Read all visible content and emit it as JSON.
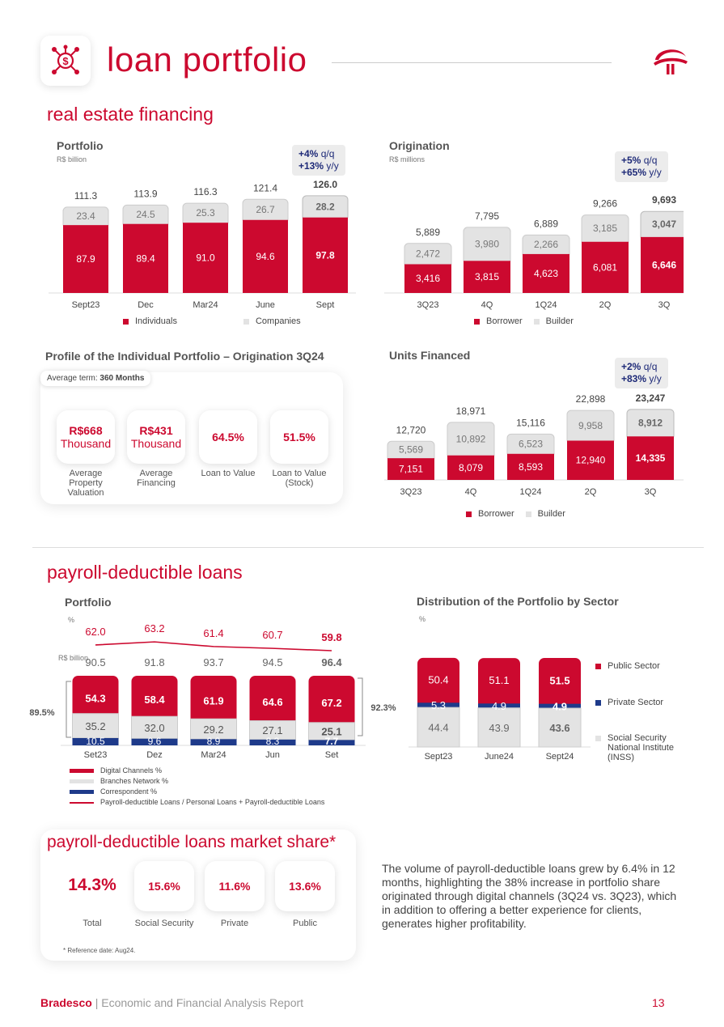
{
  "header": {
    "title": "loan portfolio"
  },
  "re": {
    "section_title": "real estate financing",
    "portfolio": {
      "title": "Portfolio",
      "unit": "R$ billion",
      "badge_line1_value": "+4%",
      "badge_line1_unit": " q/q",
      "badge_line2_value": "+13%",
      "badge_line2_unit": " y/y",
      "legend": [
        "Individuals",
        "Companies"
      ]
    },
    "origination": {
      "title": "Origination",
      "unit": "R$ millions",
      "badge_line1_value": "+5%",
      "badge_line1_unit": " q/q",
      "badge_line2_value": "+65%",
      "badge_line2_unit": " y/y",
      "legend": [
        "Borrower",
        "Builder"
      ]
    },
    "units": {
      "title": "Units Financed",
      "badge_line1_value": "+2%",
      "badge_line1_unit": " q/q",
      "badge_line2_value": "+83%",
      "badge_line2_unit": " y/y",
      "legend": [
        "Borrower",
        "Builder"
      ]
    },
    "profile": {
      "title": "Profile of the Individual Portfolio – Origination 3Q24",
      "avg_term_label": "Average term: ",
      "avg_term_value": "360 Months",
      "kpis": [
        {
          "line1": "R$668",
          "line2": "Thousand",
          "label": "Average Property Valuation"
        },
        {
          "line1": "R$431",
          "line2": "Thousand",
          "label": "Average Financing"
        },
        {
          "line1": "64.5%",
          "line2": "",
          "label": "Loan to Value"
        },
        {
          "line1": "51.5%",
          "line2": "",
          "label": "Loan to Value (Stock)"
        }
      ]
    }
  },
  "pd": {
    "section_title": "payroll-deductible loans",
    "portfolio": {
      "title": "Portfolio",
      "pct_unit": "%",
      "unit": "R$ billion",
      "left_bracket": "89.5%",
      "right_bracket": "92.3%",
      "legend": [
        "Digital Channels %",
        "Branches Network %",
        "Correspondent %",
        "Payroll-deductible Loans / Personal Loans + Payroll-deductible Loans"
      ]
    },
    "distribution": {
      "title": "Distribution of the Portfolio by Sector",
      "unit": "%",
      "legend": [
        "Public Sector",
        "Private Sector",
        "Social Security National Institute (INSS)"
      ]
    }
  },
  "ms": {
    "section_title": "payroll-deductible loans market share*",
    "kpis": [
      {
        "value": "14.3%",
        "label": "Total"
      },
      {
        "value": "15.6%",
        "label": "Social Security"
      },
      {
        "value": "11.6%",
        "label": "Private"
      },
      {
        "value": "13.6%",
        "label": "Public"
      }
    ],
    "note": "* Reference date: Aug24."
  },
  "body_text": "The volume of payroll-deductible loans grew by 6.4% in 12 months, highlighting the 38% increase in portfolio share originated through digital channels (3Q24 vs. 3Q23), which in addition to offering a better experience for clients, generates higher profitability.",
  "footer": {
    "brand": "Bradesco",
    "sep": " | ",
    "text": "Economic and Financial Analysis Report",
    "page": "13"
  },
  "colors": {
    "red": "#cc092f",
    "gray": "#e3e3e3",
    "blue": "#1e3a8a"
  },
  "chart_data": [
    {
      "id": "re_portfolio",
      "type": "bar",
      "categories": [
        "Sept23",
        "Dec",
        "Mar24",
        "June",
        "Sept"
      ],
      "series": [
        {
          "name": "Individuals",
          "values": [
            87.9,
            89.4,
            91.0,
            94.6,
            97.8
          ]
        },
        {
          "name": "Companies",
          "values": [
            23.4,
            24.5,
            25.3,
            26.7,
            28.2
          ]
        }
      ],
      "totals": [
        111.3,
        113.9,
        116.3,
        121.4,
        126.0
      ],
      "ylim": [
        0,
        130
      ]
    },
    {
      "id": "re_origination",
      "type": "bar",
      "categories": [
        "3Q23",
        "4Q",
        "1Q24",
        "2Q",
        "3Q"
      ],
      "series": [
        {
          "name": "Borrower",
          "values": [
            3416,
            3815,
            4623,
            6081,
            6646
          ]
        },
        {
          "name": "Builder",
          "values": [
            2472,
            3980,
            2266,
            3185,
            3047
          ]
        }
      ],
      "value_labels": [
        [
          "3,416",
          "3,815",
          "4,623",
          "6,081",
          "6,646"
        ],
        [
          "2,472",
          "3,980",
          "2,266",
          "3,185",
          "3,047"
        ]
      ],
      "totals": [
        5889,
        7795,
        6889,
        9266,
        9693
      ],
      "total_labels": [
        "5,889",
        "7,795",
        "6,889",
        "9,266",
        "9,693"
      ],
      "ylim": [
        0,
        10000
      ]
    },
    {
      "id": "re_units",
      "type": "bar",
      "categories": [
        "3Q23",
        "4Q",
        "1Q24",
        "2Q",
        "3Q"
      ],
      "series": [
        {
          "name": "Borrower",
          "values": [
            7151,
            8079,
            8593,
            12940,
            14335
          ]
        },
        {
          "name": "Builder",
          "values": [
            5569,
            10892,
            6523,
            9958,
            8912
          ]
        }
      ],
      "value_labels": [
        [
          "7,151",
          "8,079",
          "8,593",
          "12,940",
          "14,335"
        ],
        [
          "5,569",
          "10,892",
          "6,523",
          "9,958",
          "8,912"
        ]
      ],
      "totals": [
        12720,
        18971,
        15116,
        22898,
        23247
      ],
      "total_labels": [
        "12,720",
        "18,971",
        "15,116",
        "22,898",
        "23,247"
      ],
      "ylim": [
        0,
        24000
      ]
    },
    {
      "id": "pd_portfolio",
      "type": "bar",
      "categories": [
        "Set23",
        "Dez",
        "Mar24",
        "Jun",
        "Set"
      ],
      "series": [
        {
          "name": "Digital Channels %",
          "values": [
            54.3,
            58.4,
            61.9,
            64.6,
            67.2
          ]
        },
        {
          "name": "Branches Network %",
          "values": [
            35.2,
            32.0,
            29.2,
            27.1,
            25.1
          ]
        },
        {
          "name": "Correspondent %",
          "values": [
            10.5,
            9.6,
            8.9,
            8.3,
            7.7
          ]
        }
      ],
      "value_labels": [
        [
          "54.3",
          "58.4",
          "61.9",
          "64.6",
          "67.2"
        ],
        [
          "35.2",
          "32.0",
          "29.2",
          "27.1",
          "25.1"
        ],
        [
          "10.5",
          "9.6",
          "8.9",
          "8.3",
          "7.7"
        ]
      ],
      "totals": [
        90.5,
        91.8,
        93.7,
        94.5,
        96.4
      ],
      "line_series": {
        "name": "Payroll-deductible Loans / Personal Loans + Payroll-deductible Loans",
        "values": [
          62.0,
          63.2,
          61.4,
          60.7,
          59.8
        ]
      },
      "ylim": [
        0,
        100
      ]
    },
    {
      "id": "pd_distribution",
      "type": "bar",
      "categories": [
        "Sept23",
        "June24",
        "Sept24"
      ],
      "series": [
        {
          "name": "Public Sector",
          "values": [
            50.4,
            51.1,
            51.5
          ]
        },
        {
          "name": "Private Sector",
          "values": [
            5.3,
            4.9,
            4.9
          ]
        },
        {
          "name": "Social Security National Institute (INSS)",
          "values": [
            44.4,
            43.9,
            43.6
          ]
        }
      ],
      "ylim": [
        0,
        100
      ]
    }
  ]
}
